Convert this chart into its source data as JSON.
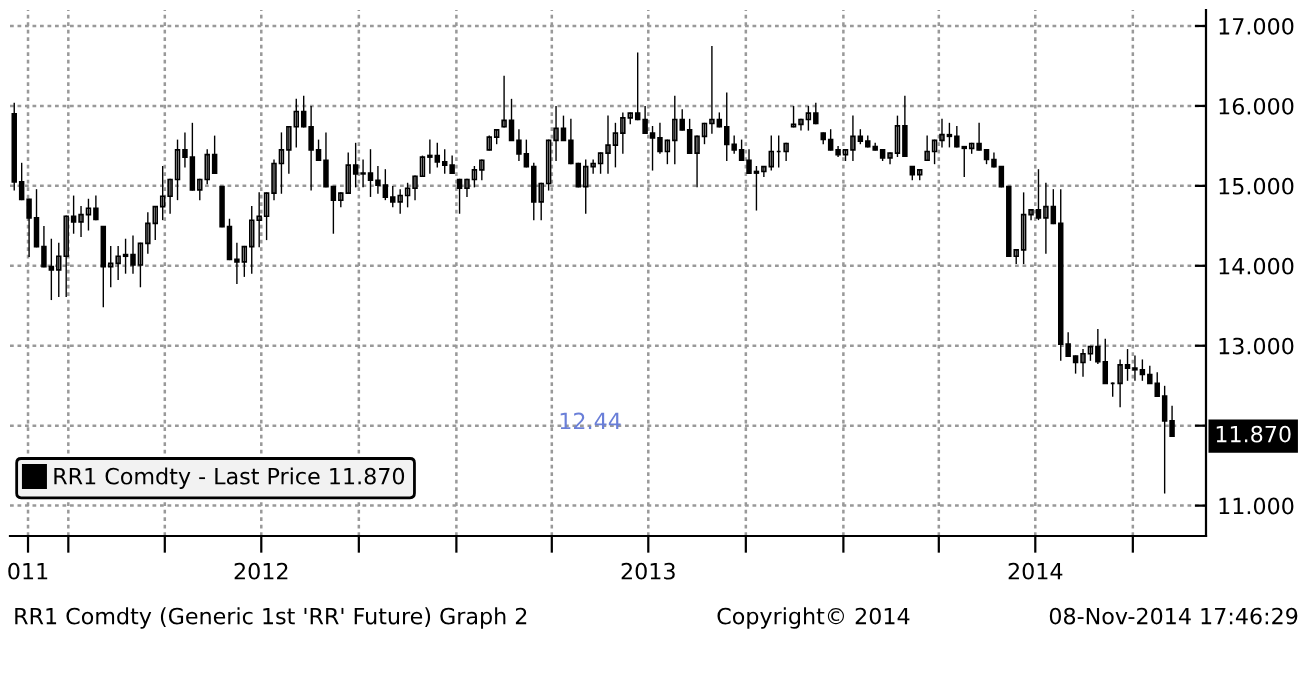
{
  "chart_data": {
    "type": "candlestick",
    "x": [
      "2011-11-11",
      "2011-11-18",
      "2011-11-25",
      "2011-12-02",
      "2011-12-09",
      "2011-12-16",
      "2011-12-23",
      "2011-12-30",
      "2012-01-06",
      "2012-01-13",
      "2012-01-20",
      "2012-01-27",
      "2012-02-03",
      "2012-02-10",
      "2012-02-17",
      "2012-02-24",
      "2012-03-02",
      "2012-03-09",
      "2012-03-16",
      "2012-03-23",
      "2012-03-30",
      "2012-04-06",
      "2012-04-13",
      "2012-04-20",
      "2012-04-27",
      "2012-05-04",
      "2012-05-11",
      "2012-05-18",
      "2012-05-25",
      "2012-06-01",
      "2012-06-08",
      "2012-06-15",
      "2012-06-22",
      "2012-06-29",
      "2012-07-06",
      "2012-07-13",
      "2012-07-20",
      "2012-07-27",
      "2012-08-03",
      "2012-08-10",
      "2012-08-17",
      "2012-08-24",
      "2012-08-31",
      "2012-09-07",
      "2012-09-14",
      "2012-09-21",
      "2012-09-28",
      "2012-10-05",
      "2012-10-12",
      "2012-10-19",
      "2012-10-26",
      "2012-11-02",
      "2012-11-09",
      "2012-11-16",
      "2012-11-23",
      "2012-11-30",
      "2012-12-07",
      "2012-12-14",
      "2012-12-21",
      "2012-12-28",
      "2013-01-04",
      "2013-01-11",
      "2013-01-18",
      "2013-01-25",
      "2013-02-01",
      "2013-02-08",
      "2013-02-15",
      "2013-02-22",
      "2013-03-01",
      "2013-03-08",
      "2013-03-15",
      "2013-03-22",
      "2013-03-29",
      "2013-04-05",
      "2013-04-12",
      "2013-04-19",
      "2013-04-26",
      "2013-05-03",
      "2013-05-10",
      "2013-05-17",
      "2013-05-24",
      "2013-05-31",
      "2013-06-07",
      "2013-06-14",
      "2013-06-21",
      "2013-06-28",
      "2013-07-05",
      "2013-07-12",
      "2013-07-19",
      "2013-07-26",
      "2013-08-02",
      "2013-08-09",
      "2013-08-16",
      "2013-08-23",
      "2013-08-30",
      "2013-09-06",
      "2013-09-13",
      "2013-09-20",
      "2013-09-27",
      "2013-10-04",
      "2013-10-11",
      "2013-10-18",
      "2013-10-25",
      "2013-11-01",
      "2013-11-08",
      "2013-11-15",
      "2013-11-22",
      "2013-11-29",
      "2013-12-06",
      "2013-12-13",
      "2013-12-20",
      "2013-12-27",
      "2014-01-03",
      "2014-01-10",
      "2014-01-17",
      "2014-01-24",
      "2014-01-31",
      "2014-02-07",
      "2014-02-14",
      "2014-02-21",
      "2014-02-28",
      "2014-03-07",
      "2014-03-14",
      "2014-03-21",
      "2014-03-28",
      "2014-04-04",
      "2014-04-11",
      "2014-04-18",
      "2014-04-25",
      "2014-05-02",
      "2014-05-09",
      "2014-05-16",
      "2014-05-23",
      "2014-05-30",
      "2014-06-06",
      "2014-06-13",
      "2014-06-20",
      "2014-06-27",
      "2014-07-04",
      "2014-07-11",
      "2014-07-18",
      "2014-07-25",
      "2014-08-01",
      "2014-08-08",
      "2014-08-15",
      "2014-08-22",
      "2014-08-29",
      "2014-09-05",
      "2014-09-12",
      "2014-09-19",
      "2014-09-26",
      "2014-10-03",
      "2014-10-10",
      "2014-10-17",
      "2014-10-24",
      "2014-10-31",
      "2014-11-07"
    ],
    "series": [
      {
        "name": "RR1 Comdty - Last Price 11.870",
        "color": "#000000",
        "ohlc": [
          [
            15.9,
            16.03,
            14.95,
            15.05
          ],
          [
            15.05,
            15.28,
            14.83,
            14.83
          ],
          [
            14.83,
            14.83,
            14.12,
            14.6
          ],
          [
            14.6,
            14.95,
            14.24,
            14.24
          ],
          [
            14.24,
            14.49,
            13.99,
            13.99
          ],
          [
            13.99,
            14.33,
            13.58,
            13.95
          ],
          [
            13.95,
            14.28,
            13.62,
            14.12
          ],
          [
            14.12,
            14.62,
            13.62,
            14.62
          ],
          [
            14.62,
            14.87,
            14.41,
            14.55
          ],
          [
            14.55,
            14.74,
            14.37,
            14.64
          ],
          [
            14.64,
            14.83,
            14.45,
            14.72
          ],
          [
            14.72,
            14.87,
            14.58,
            14.58
          ],
          [
            14.49,
            14.49,
            13.49,
            13.99
          ],
          [
            13.99,
            14.24,
            13.74,
            14.03
          ],
          [
            14.03,
            14.24,
            13.83,
            14.12
          ],
          [
            14.12,
            14.33,
            13.91,
            14.14
          ],
          [
            14.14,
            14.37,
            13.91,
            14.01
          ],
          [
            14.01,
            14.28,
            13.74,
            14.28
          ],
          [
            14.28,
            14.66,
            14.16,
            14.53
          ],
          [
            14.53,
            14.74,
            14.33,
            14.74
          ],
          [
            14.74,
            15.24,
            14.58,
            14.87
          ],
          [
            14.87,
            15.08,
            14.66,
            15.08
          ],
          [
            15.08,
            15.57,
            14.83,
            15.45
          ],
          [
            15.45,
            15.66,
            15.24,
            15.36
          ],
          [
            15.36,
            15.78,
            14.95,
            14.95
          ],
          [
            14.95,
            15.08,
            14.83,
            15.08
          ],
          [
            15.08,
            15.45,
            15.03,
            15.39
          ],
          [
            15.39,
            15.62,
            15.16,
            15.16
          ],
          [
            14.99,
            14.99,
            14.49,
            14.49
          ],
          [
            14.49,
            14.58,
            14.08,
            14.08
          ],
          [
            14.08,
            14.28,
            13.78,
            14.05
          ],
          [
            14.05,
            14.24,
            13.87,
            14.24
          ],
          [
            14.24,
            14.74,
            13.91,
            14.57
          ],
          [
            14.57,
            14.91,
            14.24,
            14.62
          ],
          [
            14.62,
            14.91,
            14.33,
            14.91
          ],
          [
            14.91,
            15.32,
            14.83,
            15.28
          ],
          [
            15.28,
            15.66,
            14.91,
            15.45
          ],
          [
            15.45,
            15.74,
            15.16,
            15.74
          ],
          [
            15.74,
            16.08,
            15.49,
            15.93
          ],
          [
            15.93,
            16.12,
            15.74,
            15.74
          ],
          [
            15.74,
            15.99,
            14.95,
            15.45
          ],
          [
            15.45,
            15.57,
            15.32,
            15.32
          ],
          [
            15.32,
            15.66,
            14.99,
            14.99
          ],
          [
            14.99,
            14.99,
            14.41,
            14.82
          ],
          [
            14.82,
            14.91,
            14.74,
            14.91
          ],
          [
            14.91,
            15.41,
            14.91,
            15.26
          ],
          [
            15.26,
            15.53,
            14.99,
            15.15
          ],
          [
            15.15,
            15.32,
            14.99,
            15.16
          ],
          [
            15.16,
            15.45,
            14.87,
            15.07
          ],
          [
            15.07,
            15.24,
            14.91,
            15.01
          ],
          [
            15.01,
            15.2,
            14.83,
            14.86
          ],
          [
            14.86,
            14.99,
            14.74,
            14.8
          ],
          [
            14.8,
            14.95,
            14.66,
            14.88
          ],
          [
            14.88,
            15.03,
            14.74,
            14.97
          ],
          [
            14.97,
            15.12,
            14.83,
            15.12
          ],
          [
            15.12,
            15.37,
            15.12,
            15.36
          ],
          [
            15.36,
            15.57,
            15.16,
            15.38
          ],
          [
            15.38,
            15.53,
            15.24,
            15.3
          ],
          [
            15.3,
            15.45,
            15.16,
            15.26
          ],
          [
            15.26,
            15.37,
            15.16,
            15.16
          ],
          [
            15.08,
            15.08,
            14.66,
            14.97
          ],
          [
            14.97,
            15.08,
            14.87,
            15.08
          ],
          [
            15.08,
            15.24,
            14.99,
            15.2
          ],
          [
            15.2,
            15.32,
            15.08,
            15.32
          ],
          [
            15.45,
            15.62,
            15.45,
            15.61
          ],
          [
            15.61,
            15.7,
            15.53,
            15.7
          ],
          [
            15.74,
            16.37,
            15.74,
            15.82
          ],
          [
            15.82,
            16.08,
            15.57,
            15.57
          ],
          [
            15.57,
            15.7,
            15.32,
            15.4
          ],
          [
            15.4,
            15.57,
            15.24,
            15.24
          ],
          [
            15.24,
            15.28,
            14.58,
            14.8
          ],
          [
            14.8,
            15.03,
            14.58,
            15.03
          ],
          [
            15.03,
            15.57,
            14.95,
            15.57
          ],
          [
            15.57,
            15.99,
            15.32,
            15.72
          ],
          [
            15.72,
            15.87,
            15.57,
            15.57
          ],
          [
            15.57,
            15.83,
            15.28,
            15.28
          ],
          [
            15.28,
            15.28,
            14.99,
            14.99
          ],
          [
            14.99,
            15.32,
            14.66,
            15.24
          ],
          [
            15.24,
            15.32,
            15.16,
            15.28
          ],
          [
            15.28,
            15.41,
            15.16,
            15.41
          ],
          [
            15.41,
            15.87,
            15.16,
            15.51
          ],
          [
            15.51,
            15.78,
            15.24,
            15.66
          ],
          [
            15.66,
            15.91,
            15.41,
            15.85
          ],
          [
            15.85,
            15.91,
            15.78,
            15.91
          ],
          [
            15.91,
            16.66,
            15.83,
            15.83
          ],
          [
            15.83,
            15.99,
            15.66,
            15.66
          ],
          [
            15.66,
            15.74,
            15.2,
            15.6
          ],
          [
            15.6,
            15.78,
            15.41,
            15.43
          ],
          [
            15.43,
            15.57,
            15.28,
            15.57
          ],
          [
            15.57,
            16.12,
            15.28,
            15.83
          ],
          [
            15.83,
            15.95,
            15.7,
            15.7
          ],
          [
            15.7,
            15.83,
            15.41,
            15.41
          ],
          [
            15.41,
            15.62,
            14.99,
            15.62
          ],
          [
            15.62,
            15.78,
            15.53,
            15.78
          ],
          [
            15.78,
            16.74,
            15.66,
            15.83
          ],
          [
            15.83,
            15.91,
            15.74,
            15.74
          ],
          [
            15.74,
            16.16,
            15.32,
            15.52
          ],
          [
            15.52,
            15.62,
            15.41,
            15.45
          ],
          [
            15.45,
            15.57,
            15.32,
            15.32
          ],
          [
            15.32,
            15.45,
            15.16,
            15.16
          ],
          [
            15.16,
            15.24,
            14.7,
            15.18
          ],
          [
            15.18,
            15.24,
            15.12,
            15.24
          ],
          [
            15.24,
            15.62,
            15.2,
            15.43
          ],
          [
            15.43,
            15.62,
            15.24,
            15.43
          ],
          [
            15.43,
            15.53,
            15.32,
            15.53
          ],
          [
            15.74,
            15.99,
            15.74,
            15.77
          ],
          [
            15.77,
            15.83,
            15.7,
            15.83
          ],
          [
            15.83,
            15.99,
            15.7,
            15.91
          ],
          [
            15.91,
            16.03,
            15.78,
            15.78
          ],
          [
            15.66,
            15.66,
            15.53,
            15.58
          ],
          [
            15.58,
            15.7,
            15.45,
            15.45
          ],
          [
            15.45,
            15.49,
            15.37,
            15.39
          ],
          [
            15.39,
            15.45,
            15.32,
            15.45
          ],
          [
            15.45,
            15.87,
            15.32,
            15.62
          ],
          [
            15.62,
            15.7,
            15.53,
            15.56
          ],
          [
            15.56,
            15.62,
            15.49,
            15.49
          ],
          [
            15.49,
            15.53,
            15.45,
            15.45
          ],
          [
            15.45,
            15.45,
            15.32,
            15.35
          ],
          [
            15.35,
            15.41,
            15.28,
            15.41
          ],
          [
            15.41,
            15.87,
            15.37,
            15.75
          ],
          [
            15.75,
            16.12,
            15.37,
            15.37
          ],
          [
            15.24,
            15.24,
            15.08,
            15.14
          ],
          [
            15.14,
            15.2,
            15.08,
            15.2
          ],
          [
            15.32,
            15.62,
            15.32,
            15.43
          ],
          [
            15.43,
            15.57,
            15.28,
            15.57
          ],
          [
            15.57,
            15.83,
            15.49,
            15.64
          ],
          [
            15.64,
            15.78,
            15.49,
            15.62
          ],
          [
            15.62,
            15.74,
            15.49,
            15.49
          ],
          [
            15.49,
            15.49,
            15.12,
            15.47
          ],
          [
            15.47,
            15.53,
            15.41,
            15.53
          ],
          [
            15.53,
            15.78,
            15.45,
            15.45
          ],
          [
            15.45,
            15.45,
            15.28,
            15.33
          ],
          [
            15.33,
            15.41,
            15.24,
            15.24
          ],
          [
            15.24,
            15.24,
            14.99,
            14.99
          ],
          [
            14.99,
            14.99,
            14.12,
            14.12
          ],
          [
            14.12,
            14.2,
            14.03,
            14.2
          ],
          [
            14.2,
            14.91,
            14.03,
            14.64
          ],
          [
            14.64,
            14.7,
            14.58,
            14.7
          ],
          [
            14.7,
            15.2,
            14.58,
            14.6
          ],
          [
            14.6,
            15.03,
            14.16,
            14.74
          ],
          [
            14.74,
            14.95,
            14.53,
            14.53
          ],
          [
            14.53,
            14.95,
            12.82,
            13.02
          ],
          [
            13.02,
            13.16,
            12.87,
            12.87
          ],
          [
            12.87,
            12.87,
            12.66,
            12.79
          ],
          [
            12.79,
            12.95,
            12.62,
            12.9
          ],
          [
            12.9,
            12.99,
            12.82,
            12.99
          ],
          [
            12.99,
            13.2,
            12.78,
            12.8
          ],
          [
            12.8,
            13.08,
            12.53,
            12.53
          ],
          [
            12.53,
            12.53,
            12.37,
            12.53
          ],
          [
            12.53,
            12.82,
            12.24,
            12.76
          ],
          [
            12.76,
            12.95,
            12.57,
            12.72
          ],
          [
            12.72,
            12.87,
            12.57,
            12.7
          ],
          [
            12.7,
            12.82,
            12.57,
            12.64
          ],
          [
            12.64,
            12.74,
            12.53,
            12.53
          ],
          [
            12.53,
            12.66,
            12.37,
            12.37
          ],
          [
            12.37,
            12.49,
            11.16,
            12.06
          ],
          [
            12.06,
            12.24,
            11.87,
            11.87
          ]
        ]
      }
    ],
    "xlim": [
      "2011-11-07",
      "2014-12-09"
    ],
    "xticks": [
      {
        "value": "2011-11-24",
        "label": "011"
      },
      {
        "value": "2012-01-01",
        "label": null
      },
      {
        "value": "2012-04-01",
        "label": null
      },
      {
        "value": "2012-07-01",
        "label": "2012"
      },
      {
        "value": "2012-10-01",
        "label": null
      },
      {
        "value": "2013-01-01",
        "label": null
      },
      {
        "value": "2013-04-01",
        "label": null
      },
      {
        "value": "2013-07-01",
        "label": "2013"
      },
      {
        "value": "2013-10-01",
        "label": null
      },
      {
        "value": "2014-01-01",
        "label": null
      },
      {
        "value": "2014-04-01",
        "label": null
      },
      {
        "value": "2014-07-01",
        "label": "2014"
      },
      {
        "value": "2014-10-01",
        "label": null
      }
    ],
    "ylim": [
      10.62,
      17.2
    ],
    "yticks": [
      {
        "value": 11,
        "label": "11.000"
      },
      {
        "value": 12,
        "label": null
      },
      {
        "value": 13,
        "label": "13.000"
      },
      {
        "value": 14,
        "label": "14.000"
      },
      {
        "value": 15,
        "label": "15.000"
      },
      {
        "value": 16,
        "label": "16.000"
      },
      {
        "value": 17,
        "label": "17.000"
      }
    ],
    "grid": true,
    "legend": "lower left",
    "annotations": [
      {
        "text": "11.870",
        "x": "2014-11-07",
        "y": 11.87
      },
      "12.44",
      "RR1 Comdty (Generic 1st 'RR' Future) Graph 2",
      "Copyright© 2014",
      "08-Nov-2014 17:46:29"
    ]
  }
}
